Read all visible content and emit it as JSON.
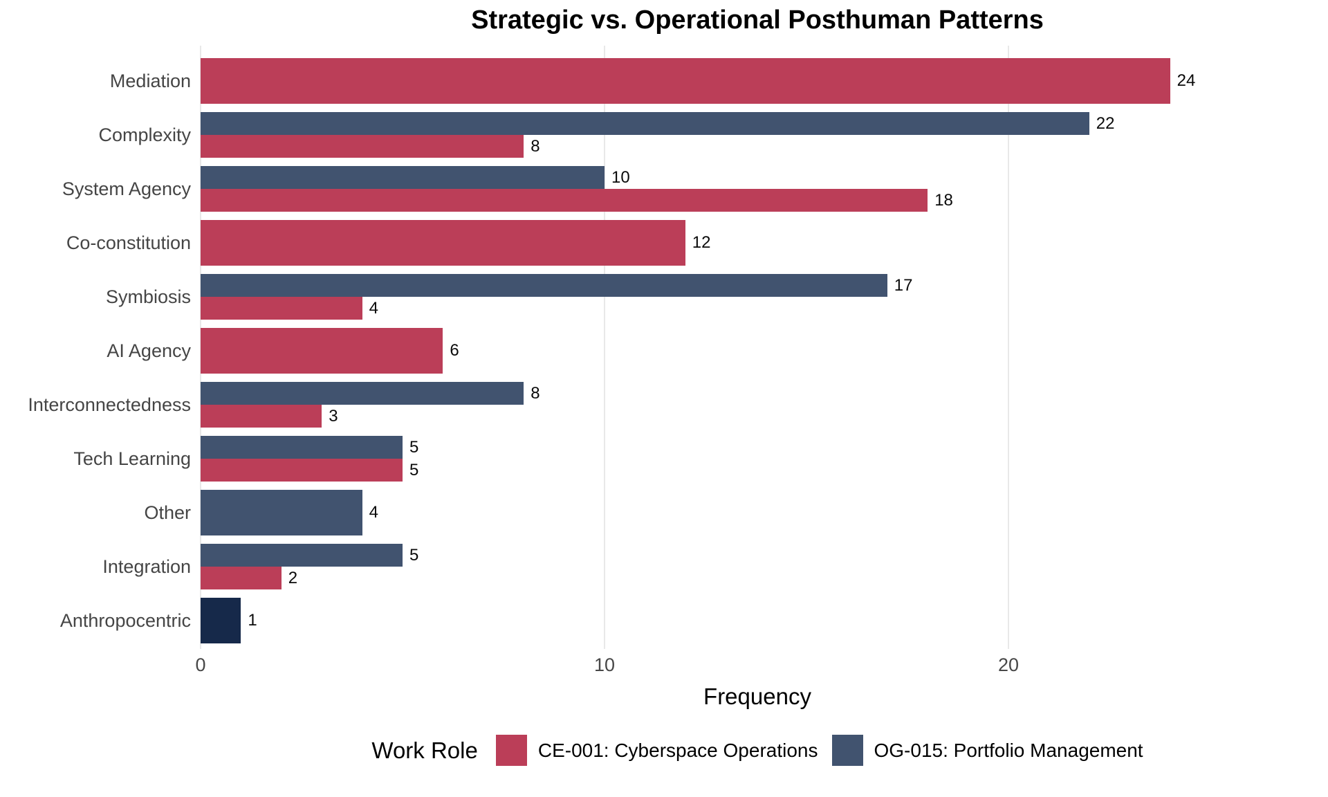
{
  "title": "Strategic vs. Operational Posthuman Patterns",
  "legend": {
    "title": "Work Role"
  },
  "chart_data": {
    "type": "bar",
    "orientation": "horizontal",
    "title": "Strategic vs. Operational Posthuman Patterns",
    "xlabel": "Frequency",
    "ylabel": "",
    "x_ticks": [
      0,
      10,
      20
    ],
    "xlim": [
      0,
      27.5
    ],
    "grid": "vertical major gridlines only, light gray, white background",
    "legend_position": "bottom",
    "legend_title": "Work Role",
    "value_labels": true,
    "categories": [
      "Mediation",
      "Complexity",
      "System Agency",
      "Co-constitution",
      "Symbiosis",
      "AI Agency",
      "Interconnectedness",
      "Tech Learning",
      "Other",
      "Integration",
      "Anthropocentric"
    ],
    "series": [
      {
        "name": "CE-001: Cyberspace Operations",
        "color": "#bb3e58",
        "values": [
          24,
          8,
          18,
          12,
          4,
          6,
          3,
          5,
          null,
          2,
          null
        ]
      },
      {
        "name": "OG-015: Portfolio Management",
        "color": "#41536f",
        "values": [
          null,
          22,
          10,
          null,
          17,
          null,
          8,
          5,
          4,
          5,
          null
        ]
      },
      {
        "name": "",
        "color": "#16294a",
        "values": [
          null,
          null,
          null,
          null,
          null,
          null,
          null,
          null,
          null,
          null,
          1
        ]
      }
    ]
  },
  "colors": {
    "background": "#ffffff",
    "gridline": "#e8e8e8",
    "axis_text": "#474747",
    "category_text": "#454545",
    "value_text": "#0a0a0a"
  }
}
